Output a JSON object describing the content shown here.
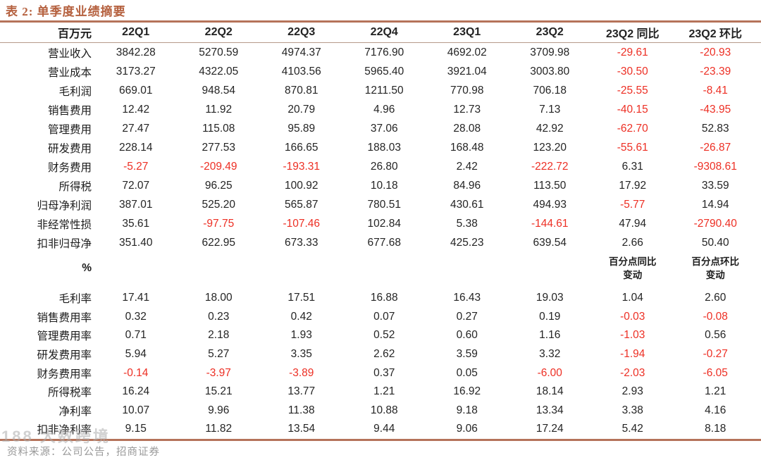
{
  "title": "表 2: 单季度业绩摘要",
  "colors": {
    "accent": "#b5613f",
    "rule": "#b5735a",
    "negative": "#ed2f24",
    "text": "#222222"
  },
  "table": {
    "unit_header": "百万元",
    "columns": [
      "22Q1",
      "22Q2",
      "22Q3",
      "22Q4",
      "23Q1",
      "23Q2",
      "23Q2 同比",
      "23Q2 环比"
    ],
    "section_mn_rows": [
      {
        "label": "营业收入",
        "values": [
          "3842.28",
          "5270.59",
          "4974.37",
          "7176.90",
          "4692.02",
          "3709.98",
          "-29.61",
          "-20.93"
        ]
      },
      {
        "label": "营业成本",
        "values": [
          "3173.27",
          "4322.05",
          "4103.56",
          "5965.40",
          "3921.04",
          "3003.80",
          "-30.50",
          "-23.39"
        ]
      },
      {
        "label": "毛利润",
        "values": [
          "669.01",
          "948.54",
          "870.81",
          "1211.50",
          "770.98",
          "706.18",
          "-25.55",
          "-8.41"
        ]
      },
      {
        "label": "销售费用",
        "values": [
          "12.42",
          "11.92",
          "20.79",
          "4.96",
          "12.73",
          "7.13",
          "-40.15",
          "-43.95"
        ]
      },
      {
        "label": "管理费用",
        "values": [
          "27.47",
          "115.08",
          "95.89",
          "37.06",
          "28.08",
          "42.92",
          "-62.70",
          "52.83"
        ]
      },
      {
        "label": "研发费用",
        "values": [
          "228.14",
          "277.53",
          "166.65",
          "188.03",
          "168.48",
          "123.20",
          "-55.61",
          "-26.87"
        ]
      },
      {
        "label": "财务费用",
        "values": [
          "-5.27",
          "-209.49",
          "-193.31",
          "26.80",
          "2.42",
          "-222.72",
          "6.31",
          "-9308.61"
        ]
      },
      {
        "label": "所得税",
        "values": [
          "72.07",
          "96.25",
          "100.92",
          "10.18",
          "84.96",
          "113.50",
          "17.92",
          "33.59"
        ]
      },
      {
        "label": "归母净利润",
        "values": [
          "387.01",
          "525.20",
          "565.87",
          "780.51",
          "430.61",
          "494.93",
          "-5.77",
          "14.94"
        ]
      },
      {
        "label": "非经常性损",
        "values": [
          "35.61",
          "-97.75",
          "-107.46",
          "102.84",
          "5.38",
          "-144.61",
          "47.94",
          "-2790.40"
        ]
      },
      {
        "label": "扣非归母净",
        "values": [
          "351.40",
          "622.95",
          "673.33",
          "677.68",
          "425.23",
          "639.54",
          "2.66",
          "50.40"
        ]
      }
    ],
    "percent_label": "%",
    "pp_yoy": {
      "line1": "百分点同比",
      "line2": "变动"
    },
    "pp_qoq": {
      "line1": "百分点环比",
      "line2": "变动"
    },
    "section_pct_rows": [
      {
        "label": "毛利率",
        "values": [
          "17.41",
          "18.00",
          "17.51",
          "16.88",
          "16.43",
          "19.03",
          "1.04",
          "2.60"
        ]
      },
      {
        "label": "销售费用率",
        "values": [
          "0.32",
          "0.23",
          "0.42",
          "0.07",
          "0.27",
          "0.19",
          "-0.03",
          "-0.08"
        ]
      },
      {
        "label": "管理费用率",
        "values": [
          "0.71",
          "2.18",
          "1.93",
          "0.52",
          "0.60",
          "1.16",
          "-1.03",
          "0.56"
        ]
      },
      {
        "label": "研发费用率",
        "values": [
          "5.94",
          "5.27",
          "3.35",
          "2.62",
          "3.59",
          "3.32",
          "-1.94",
          "-0.27"
        ]
      },
      {
        "label": "财务费用率",
        "values": [
          "-0.14",
          "-3.97",
          "-3.89",
          "0.37",
          "0.05",
          "-6.00",
          "-2.03",
          "-6.05"
        ]
      },
      {
        "label": "所得税率",
        "values": [
          "16.24",
          "15.21",
          "13.77",
          "1.21",
          "16.92",
          "18.14",
          "2.93",
          "1.21"
        ]
      },
      {
        "label": "净利率",
        "values": [
          "10.07",
          "9.96",
          "11.38",
          "10.88",
          "9.18",
          "13.34",
          "3.38",
          "4.16"
        ]
      },
      {
        "label": "扣非净利率",
        "values": [
          "9.15",
          "11.82",
          "13.54",
          "9.44",
          "9.06",
          "17.24",
          "5.42",
          "8.18"
        ]
      }
    ]
  },
  "footer": {
    "source": "资料来源：公司公告，招商证券",
    "watermark": "188 大数跨境"
  }
}
